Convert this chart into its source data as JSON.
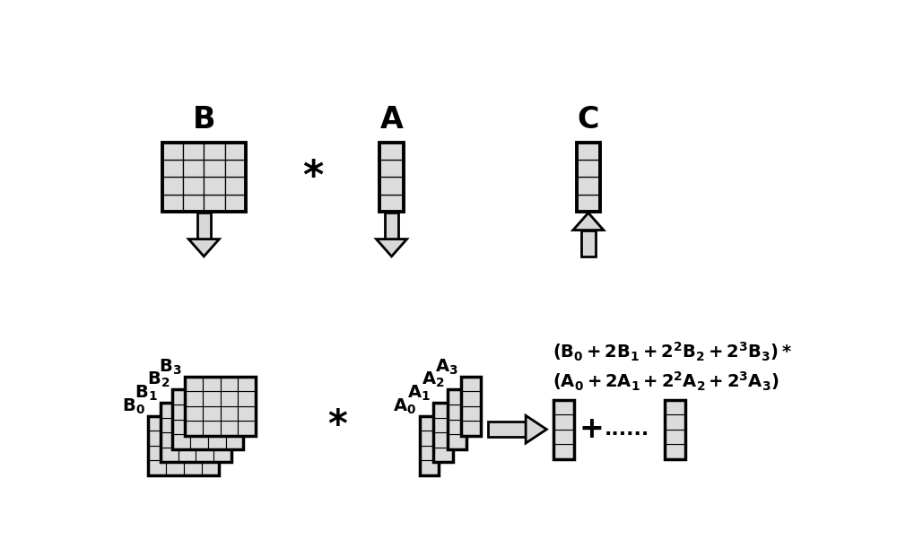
{
  "bg_color": "#ffffff",
  "cell_color": "#dcdcdc",
  "cell_edge_color": "#000000",
  "thick_border_color": "#000000",
  "arrow_fill": "#d8d8d8",
  "arrow_edge": "#000000",
  "title_B": "B",
  "title_A": "A",
  "title_C": "C",
  "label_B": [
    "B₃",
    "B₂",
    "B₁",
    "B₀"
  ],
  "label_A": [
    "A₃",
    "A₂",
    "A₁",
    "A₀"
  ],
  "star": "*",
  "plus": "+",
  "dots": "......",
  "fig_w": 10.0,
  "fig_h": 6.11,
  "xlim": [
    0,
    10
  ],
  "ylim": [
    0,
    6.11
  ]
}
